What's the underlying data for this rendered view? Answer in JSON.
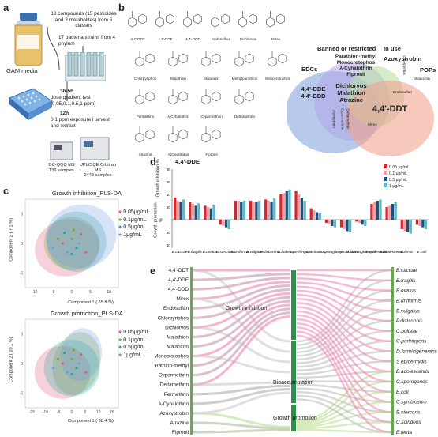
{
  "panels": {
    "a": "a",
    "b": "b",
    "c": "c",
    "d": "d",
    "e": "e"
  },
  "panel_a": {
    "compounds": "18 compounds (15 pesticides and 3 metabolites) from 6 classes",
    "strains": "17 bacteria strains from 4 phylum",
    "media": "GAM media",
    "step1": "3h-5h",
    "step1_desc": "dose gradient test [0.05,0.1,0.5,1 ppm]",
    "step2": "12h",
    "step2_desc": "0.1 ppm exposure Harvest and extract",
    "ms1": "GC-QQQ MS",
    "ms1_n": "136 samples",
    "ms2": "UPLC QE Orbitrap MS",
    "ms2_n": "2448 samples"
  },
  "panel_b": {
    "structures": [
      "4,4'-DDT",
      "4,4'-DDE",
      "4,4'-DDD",
      "Endosulfan",
      "Dichlorvos",
      "Mirex",
      "Chlorpyriphos",
      "Malathion",
      "Malaoxon",
      "Methylparathion",
      "Monocrotophos",
      "Permethrin",
      "λ-Cyhalothrin",
      "Cypermethrin",
      "Deltamethrin",
      "Atrazine",
      "Azoxystrobin",
      "Fipronil"
    ],
    "venn": {
      "edcs_label": "EDCs",
      "banned_label": "Banned or restricted",
      "inuse_label": "In use",
      "pops_label": "POPs",
      "edcs_only": [
        "4,4'-DDE",
        "4,4'-DDD"
      ],
      "banned_edcs": [
        "Dichlorvos",
        "Malathion",
        "Atrazine"
      ],
      "banned_only": [
        "Parathion-methyl",
        "Monocrotophos",
        "λ-Cyhalothrin",
        "Fipronil"
      ],
      "inuse_only": "Azoxystrobin",
      "center": "4,4'-DDT",
      "small_left": "Permethrin",
      "small_mid": "Cypermethrin",
      "small_mid2": "Deltamethrin",
      "mirex": "Mirex",
      "endosulfan": "Endosulfan",
      "chlorpyrifos": "Chlorpyrifos",
      "malaoxon": "Malaoxon"
    }
  },
  "panel_c": {
    "plot1": {
      "title": "Growth inhibition_PLS-DA",
      "xlabel": "Component 1 ( 65.8 %)",
      "ylabel": "Component 2 ( 7.1 %)",
      "xticks": [
        "-10",
        "-5",
        "0",
        "5",
        "10"
      ],
      "yticks": [
        "5",
        "0",
        "-5"
      ]
    },
    "plot2": {
      "title": "Growth promotion_PLS-DA",
      "xlabel": "Component 1 ( 38.4 %)",
      "ylabel": "Component 2 ( 20.1 %)",
      "xticks": [
        "-15",
        "-10",
        "-5",
        "0",
        "5",
        "10",
        "15"
      ],
      "yticks": [
        "5",
        "0",
        "-5"
      ]
    },
    "legend": [
      {
        "label": "0.05μg/mL",
        "color": "#e45a7a"
      },
      {
        "label": "0.1μg/mL",
        "color": "#7aa63a"
      },
      {
        "label": "0.5μg/mL",
        "color": "#2aa6a0"
      },
      {
        "label": "1μg/mL",
        "color": "#6e9be0"
      }
    ]
  },
  "panel_d": {
    "title": "4,4'-DDE",
    "ylabel_top": "Growth inhibition %",
    "ylabel_bottom": "Growth promotion %",
    "yticks_top": [
      "80",
      "60",
      "40",
      "20"
    ],
    "yticks_bottom": [
      "20",
      "40"
    ],
    "legend": [
      {
        "label": "0.05 μg/mL",
        "color": "#d3262f"
      },
      {
        "label": "0.1 μg/mL",
        "color": "#f0a0a0"
      },
      {
        "label": "0.5 μg/mL",
        "color": "#1f4e79"
      },
      {
        "label": "1 μg/mL",
        "color": "#5fb8c4"
      }
    ],
    "chart_data": {
      "type": "bar",
      "categories": [
        "B.caccae",
        "B.fragilis",
        "B.ovatus",
        "B.stercoris",
        "B.uniformis",
        "B.vulgatus",
        "P.distasonis",
        "C.bolteae",
        "C.perfringens",
        "C.scindens",
        "C.sporogenes",
        "C.symbiosum",
        "D.formicigenerans",
        "S.epidermidis",
        "B.adolescentis",
        "E.lenta",
        "E.coli"
      ],
      "series": [
        {
          "name": "0.05 μg/mL",
          "values": [
            35,
            28,
            22,
            -8,
            30,
            30,
            32,
            40,
            45,
            18,
            -5,
            -12,
            -3,
            25,
            20,
            -15,
            -8
          ]
        },
        {
          "name": "0.1 μg/mL",
          "values": [
            30,
            25,
            20,
            -10,
            30,
            28,
            30,
            42,
            40,
            15,
            -8,
            -15,
            -5,
            28,
            22,
            -18,
            -10
          ]
        },
        {
          "name": "0.5 μg/mL",
          "values": [
            28,
            22,
            18,
            -12,
            28,
            28,
            28,
            45,
            35,
            12,
            -10,
            -18,
            -8,
            30,
            25,
            -20,
            -12
          ]
        },
        {
          "name": "1 μg/mL",
          "values": [
            32,
            26,
            24,
            -15,
            30,
            30,
            34,
            48,
            30,
            10,
            -12,
            -20,
            -10,
            32,
            28,
            -22,
            -15
          ]
        }
      ],
      "ylim": [
        -45,
        80
      ]
    }
  },
  "panel_e": {
    "compounds": [
      "4,4'-DDT",
      "4,4'-DDE",
      "4,4'-DDD",
      "Mirex",
      "Endosulfan",
      "Chlorpyriphos",
      "Dichlorvos",
      "Malathion",
      "Malaoxon",
      "Monocrotophos",
      "Parathion-methyl",
      "Cypermethrin",
      "Deltamethrin",
      "Permethrin",
      "λ-Cyhalothrin",
      "Azoxystrobin",
      "Atrazine",
      "Fipronil"
    ],
    "effects": [
      "Growth inhibition",
      "Bioaccumulation",
      "Growth promotion"
    ],
    "bacteria": [
      "B.caccae",
      "B.fragilis",
      "B.ovatus",
      "B.uniformis",
      "B.vulgatus",
      "P.distasonis",
      "C.bolteae",
      "C.perfringens",
      "D.formicigenerans",
      "S.epidermidis",
      "B.adolescentis",
      "C.sporogenes",
      "E.coli",
      "C.symbiosum",
      "B.stercoris",
      "C.scindens",
      "E.lenta"
    ]
  }
}
